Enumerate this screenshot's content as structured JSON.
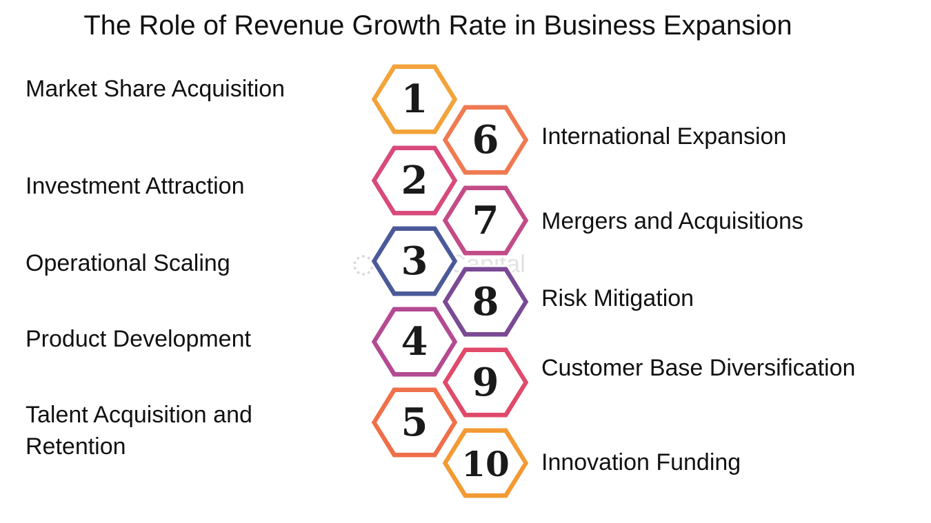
{
  "title": "The Role of Revenue Growth Rate in Business Expansion",
  "watermark": "FasterCapital",
  "left_items": [
    {
      "number": "1",
      "label": "Market Share Acquisition",
      "color": "#f2a33a"
    },
    {
      "number": "2",
      "label": "Investment Attraction",
      "color": "#d84a7c"
    },
    {
      "number": "3",
      "label": "Operational Scaling",
      "color": "#4a5a99"
    },
    {
      "number": "4",
      "label": "Product Development",
      "color": "#b44a92"
    },
    {
      "number": "5",
      "label": "Talent Acquisition and Retention",
      "label_lines": [
        "Talent Acquisition and",
        "Retention"
      ],
      "color": "#ef6f4a"
    }
  ],
  "right_items": [
    {
      "number": "6",
      "label": "International Expansion",
      "color": "#ef7a52"
    },
    {
      "number": "7",
      "label": "Mergers and Acquisitions",
      "color": "#c24c88"
    },
    {
      "number": "8",
      "label": "Risk Mitigation",
      "color": "#7a4a94"
    },
    {
      "number": "9",
      "label": "Customer Base Diversification",
      "color": "#e04a6a"
    },
    {
      "number": "10",
      "label": "Innovation Funding",
      "color": "#f39a34"
    }
  ]
}
